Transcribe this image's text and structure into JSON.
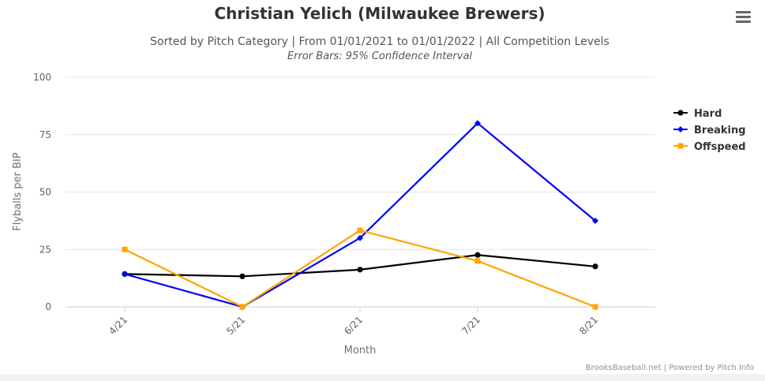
{
  "chart_data": {
    "type": "line",
    "title": "Christian Yelich (Milwaukee Brewers)",
    "subtitle": "Sorted by Pitch Category | From 01/01/2021 to 01/01/2022 | All Competition Levels",
    "subtitle2": "Error Bars: 95% Confidence Interval",
    "xlabel": "Month",
    "ylabel": "Flyballs per BIP",
    "categories": [
      "4/21",
      "5/21",
      "6/21",
      "7/21",
      "8/21"
    ],
    "ylim": [
      0,
      100
    ],
    "yticks": [
      0,
      25,
      50,
      75,
      100
    ],
    "grid": true,
    "legend_position": "right",
    "series": [
      {
        "name": "Hard",
        "color": "#000000",
        "marker": "circle",
        "values": [
          14.3,
          13.3,
          16.2,
          22.6,
          17.6
        ]
      },
      {
        "name": "Breaking",
        "color": "#0000ff",
        "marker": "diamond",
        "values": [
          14.3,
          0,
          30.0,
          80.0,
          37.5
        ]
      },
      {
        "name": "Offspeed",
        "color": "#ffa500",
        "marker": "square",
        "values": [
          25.0,
          0,
          33.3,
          20.0,
          0
        ]
      }
    ],
    "credits": "BrooksBaseball.net | Powered by Pitch Info"
  },
  "icons": {
    "menu": "hamburger-menu-icon"
  }
}
